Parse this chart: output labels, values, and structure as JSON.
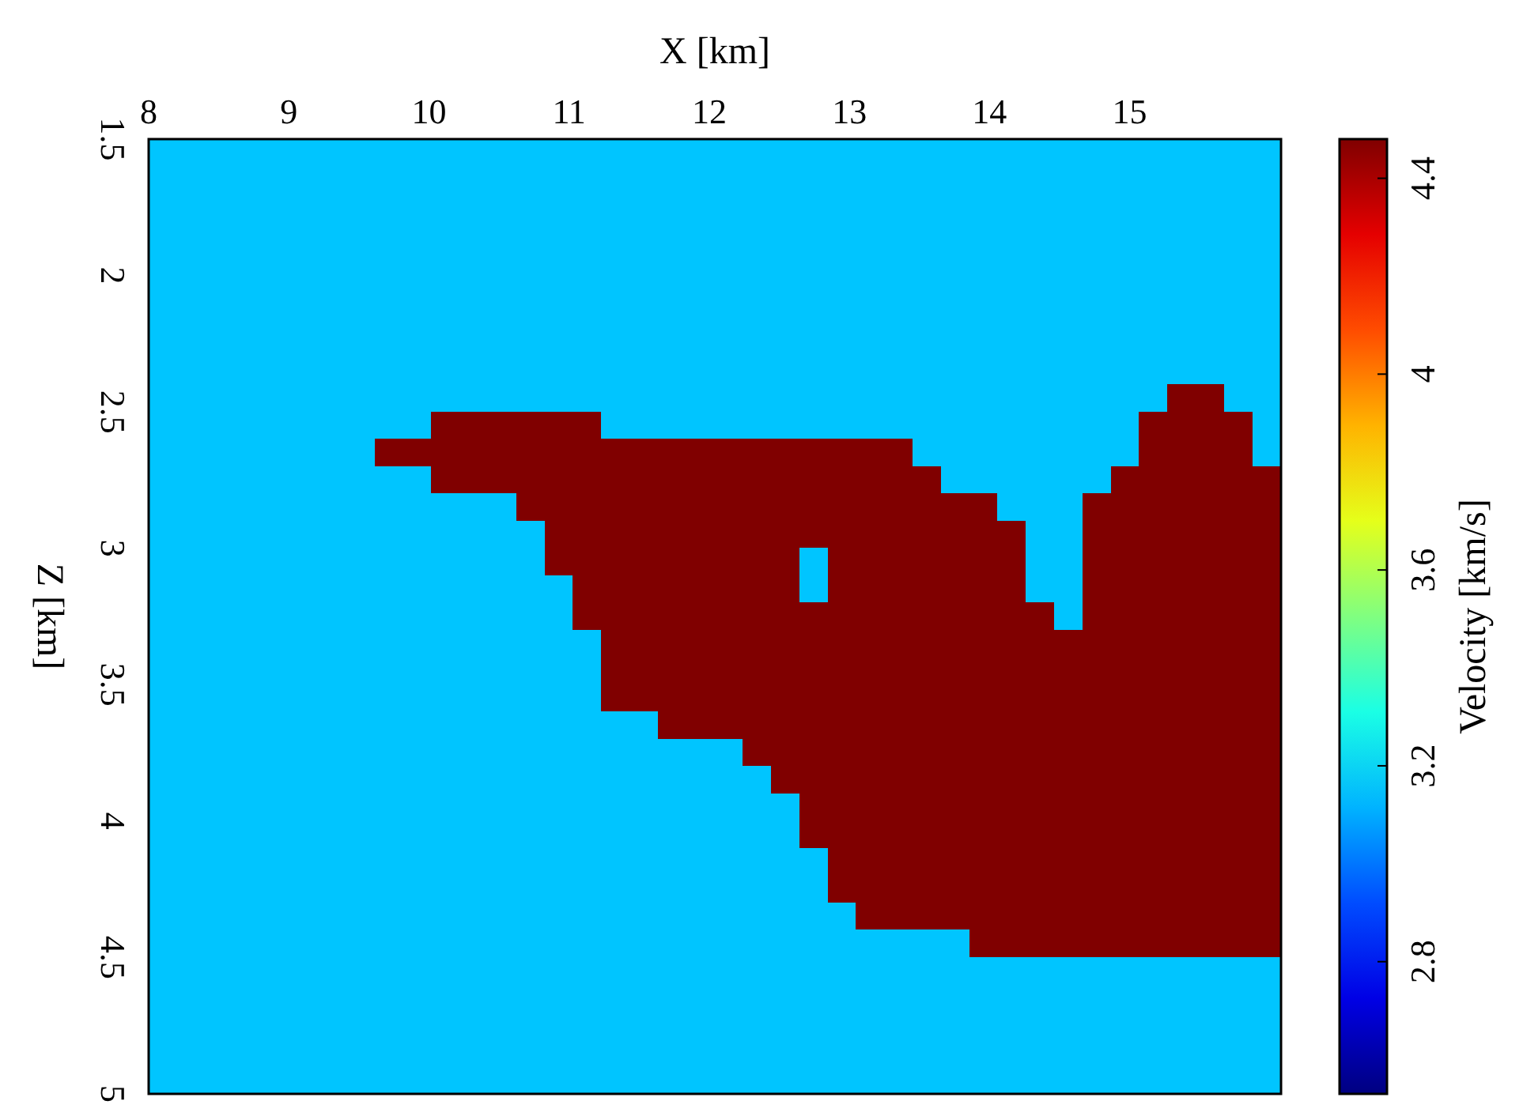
{
  "chart_data": {
    "type": "heatmap",
    "xlabel": "X [km]",
    "ylabel": "Z [km]",
    "clabel": "Velocity [km/s]",
    "xlim": [
      8,
      16.08
    ],
    "ylim": [
      5,
      1.5
    ],
    "xticks": [
      8,
      9,
      10,
      11,
      12,
      13,
      14,
      15
    ],
    "yticks": [
      1.5,
      2,
      2.5,
      3,
      3.5,
      4,
      4.5,
      5
    ],
    "clim": [
      2.53,
      4.48
    ],
    "cticks": [
      2.8,
      3.2,
      3.6,
      4,
      4.4
    ],
    "cells": [
      [
        3.15,
        3.15,
        3.15,
        3.15,
        3.15,
        3.15,
        3.15,
        3.15,
        3.15,
        3.15,
        3.15,
        3.15,
        3.15,
        3.15,
        3.15,
        3.15,
        3.15,
        3.15,
        3.15,
        3.15,
        3.15,
        3.15,
        3.15,
        3.15,
        3.15,
        3.15,
        3.15,
        3.15,
        3.15,
        3.15,
        3.15,
        3.15,
        3.15,
        3.15,
        3.15,
        3.15,
        3.15,
        3.15,
        3.15,
        3.15
      ],
      [
        3.15,
        3.15,
        3.15,
        3.15,
        3.15,
        3.15,
        3.15,
        3.15,
        3.15,
        3.15,
        3.15,
        3.15,
        3.15,
        3.15,
        3.15,
        3.15,
        3.15,
        3.15,
        3.15,
        3.15,
        3.15,
        3.15,
        3.15,
        3.15,
        3.15,
        3.15,
        3.15,
        3.15,
        3.15,
        3.15,
        3.15,
        3.15,
        3.15,
        3.15,
        3.15,
        3.15,
        3.15,
        3.15,
        3.15,
        3.15
      ],
      [
        3.15,
        3.15,
        3.15,
        3.15,
        3.15,
        3.15,
        3.15,
        3.15,
        3.15,
        3.15,
        3.15,
        3.15,
        3.15,
        3.15,
        3.15,
        3.15,
        3.15,
        3.15,
        3.15,
        3.15,
        3.15,
        3.15,
        3.15,
        3.15,
        3.15,
        3.15,
        3.15,
        3.15,
        3.15,
        3.15,
        3.15,
        3.15,
        3.15,
        3.15,
        3.15,
        3.15,
        3.15,
        3.15,
        3.15,
        3.15
      ],
      [
        3.15,
        3.15,
        3.15,
        3.15,
        3.15,
        3.15,
        3.15,
        3.15,
        3.15,
        3.15,
        3.15,
        3.15,
        3.15,
        3.15,
        3.15,
        3.15,
        3.15,
        3.15,
        3.15,
        3.15,
        3.15,
        3.15,
        3.15,
        3.15,
        3.15,
        3.15,
        3.15,
        3.15,
        3.15,
        3.15,
        3.15,
        3.15,
        3.15,
        3.15,
        3.15,
        3.15,
        3.15,
        3.15,
        3.15,
        3.15
      ],
      [
        3.15,
        3.15,
        3.15,
        3.15,
        3.15,
        3.15,
        3.15,
        3.15,
        3.15,
        3.15,
        3.15,
        3.15,
        3.15,
        3.15,
        3.15,
        3.15,
        3.15,
        3.15,
        3.15,
        3.15,
        3.15,
        3.15,
        3.15,
        3.15,
        3.15,
        3.15,
        3.15,
        3.15,
        3.15,
        3.15,
        3.15,
        3.15,
        3.15,
        3.15,
        3.15,
        3.15,
        3.15,
        3.15,
        3.15,
        3.15
      ],
      [
        3.15,
        3.15,
        3.15,
        3.15,
        3.15,
        3.15,
        3.15,
        3.15,
        3.15,
        3.15,
        3.15,
        3.15,
        3.15,
        3.15,
        3.15,
        3.15,
        3.15,
        3.15,
        3.15,
        3.15,
        3.15,
        3.15,
        3.15,
        3.15,
        3.15,
        3.15,
        3.15,
        3.15,
        3.15,
        3.15,
        3.15,
        3.15,
        3.15,
        3.15,
        3.15,
        3.15,
        3.15,
        3.15,
        3.15,
        3.15
      ],
      [
        3.15,
        3.15,
        3.15,
        3.15,
        3.15,
        3.15,
        3.15,
        3.15,
        3.15,
        3.15,
        3.15,
        3.15,
        3.15,
        3.15,
        3.15,
        3.15,
        3.15,
        3.15,
        3.15,
        3.15,
        3.15,
        3.15,
        3.15,
        3.15,
        3.15,
        3.15,
        3.15,
        3.15,
        3.15,
        3.15,
        3.15,
        3.15,
        3.15,
        3.15,
        3.15,
        3.15,
        3.15,
        3.15,
        3.15,
        3.15
      ],
      [
        3.15,
        3.15,
        3.15,
        3.15,
        3.15,
        3.15,
        3.15,
        3.15,
        3.15,
        3.15,
        3.15,
        3.15,
        3.15,
        3.15,
        3.15,
        3.15,
        3.15,
        3.15,
        3.15,
        3.15,
        3.15,
        3.15,
        3.15,
        3.15,
        3.15,
        3.15,
        3.15,
        3.15,
        3.15,
        3.15,
        3.15,
        3.15,
        3.15,
        3.15,
        3.15,
        3.15,
        3.15,
        3.15,
        3.15,
        3.15
      ],
      [
        3.15,
        3.15,
        3.15,
        3.15,
        3.15,
        3.15,
        3.15,
        3.15,
        3.15,
        3.15,
        3.15,
        3.15,
        3.15,
        3.15,
        3.15,
        3.15,
        3.15,
        3.15,
        3.15,
        3.15,
        3.15,
        3.15,
        3.15,
        3.15,
        3.15,
        3.15,
        3.15,
        3.15,
        3.15,
        3.15,
        3.15,
        3.15,
        3.15,
        3.15,
        3.15,
        3.15,
        3.15,
        3.15,
        3.15,
        3.15
      ],
      [
        3.15,
        3.15,
        3.15,
        3.15,
        3.15,
        3.15,
        3.15,
        3.15,
        3.15,
        3.15,
        3.15,
        3.15,
        3.15,
        3.15,
        3.15,
        3.15,
        3.15,
        3.15,
        3.15,
        3.15,
        3.15,
        3.15,
        3.15,
        3.15,
        3.15,
        3.15,
        3.15,
        3.15,
        3.15,
        3.15,
        3.15,
        3.15,
        3.15,
        3.15,
        3.15,
        3.15,
        4.48,
        4.48,
        3.15,
        3.15
      ],
      [
        3.15,
        3.15,
        3.15,
        3.15,
        3.15,
        3.15,
        3.15,
        3.15,
        3.15,
        3.15,
        4.48,
        4.48,
        4.48,
        4.48,
        4.48,
        4.48,
        3.15,
        3.15,
        3.15,
        3.15,
        3.15,
        3.15,
        3.15,
        3.15,
        3.15,
        3.15,
        3.15,
        3.15,
        3.15,
        3.15,
        3.15,
        3.15,
        3.15,
        3.15,
        3.15,
        4.48,
        4.48,
        4.48,
        4.48,
        3.15
      ],
      [
        3.15,
        3.15,
        3.15,
        3.15,
        3.15,
        3.15,
        3.15,
        3.15,
        4.48,
        4.48,
        4.48,
        4.48,
        4.48,
        4.48,
        4.48,
        4.48,
        4.48,
        4.48,
        4.48,
        4.48,
        4.48,
        4.48,
        4.48,
        4.48,
        4.48,
        4.48,
        4.48,
        3.15,
        3.15,
        3.15,
        3.15,
        3.15,
        3.15,
        3.15,
        3.15,
        4.48,
        4.48,
        4.48,
        4.48,
        3.15
      ],
      [
        3.15,
        3.15,
        3.15,
        3.15,
        3.15,
        3.15,
        3.15,
        3.15,
        3.15,
        3.15,
        4.48,
        4.48,
        4.48,
        4.48,
        4.48,
        4.48,
        4.48,
        4.48,
        4.48,
        4.48,
        4.48,
        4.48,
        4.48,
        4.48,
        4.48,
        4.48,
        4.48,
        4.48,
        3.15,
        3.15,
        3.15,
        3.15,
        3.15,
        3.15,
        4.48,
        4.48,
        4.48,
        4.48,
        4.48,
        4.48
      ],
      [
        3.15,
        3.15,
        3.15,
        3.15,
        3.15,
        3.15,
        3.15,
        3.15,
        3.15,
        3.15,
        3.15,
        3.15,
        3.15,
        4.48,
        4.48,
        4.48,
        4.48,
        4.48,
        4.48,
        4.48,
        4.48,
        4.48,
        4.48,
        4.48,
        4.48,
        4.48,
        4.48,
        4.48,
        4.48,
        4.48,
        3.15,
        3.15,
        3.15,
        4.48,
        4.48,
        4.48,
        4.48,
        4.48,
        4.48,
        4.48
      ],
      [
        3.15,
        3.15,
        3.15,
        3.15,
        3.15,
        3.15,
        3.15,
        3.15,
        3.15,
        3.15,
        3.15,
        3.15,
        3.15,
        3.15,
        4.48,
        4.48,
        4.48,
        4.48,
        4.48,
        4.48,
        4.48,
        4.48,
        4.48,
        4.48,
        4.48,
        4.48,
        4.48,
        4.48,
        4.48,
        4.48,
        4.48,
        3.15,
        3.15,
        4.48,
        4.48,
        4.48,
        4.48,
        4.48,
        4.48,
        4.48
      ],
      [
        3.15,
        3.15,
        3.15,
        3.15,
        3.15,
        3.15,
        3.15,
        3.15,
        3.15,
        3.15,
        3.15,
        3.15,
        3.15,
        3.15,
        4.48,
        4.48,
        4.48,
        4.48,
        4.48,
        4.48,
        4.48,
        4.48,
        4.48,
        3.15,
        4.48,
        4.48,
        4.48,
        4.48,
        4.48,
        4.48,
        4.48,
        3.15,
        3.15,
        4.48,
        4.48,
        4.48,
        4.48,
        4.48,
        4.48,
        4.48
      ],
      [
        3.15,
        3.15,
        3.15,
        3.15,
        3.15,
        3.15,
        3.15,
        3.15,
        3.15,
        3.15,
        3.15,
        3.15,
        3.15,
        3.15,
        3.15,
        4.48,
        4.48,
        4.48,
        4.48,
        4.48,
        4.48,
        4.48,
        4.48,
        3.15,
        4.48,
        4.48,
        4.48,
        4.48,
        4.48,
        4.48,
        4.48,
        3.15,
        3.15,
        4.48,
        4.48,
        4.48,
        4.48,
        4.48,
        4.48,
        4.48
      ],
      [
        3.15,
        3.15,
        3.15,
        3.15,
        3.15,
        3.15,
        3.15,
        3.15,
        3.15,
        3.15,
        3.15,
        3.15,
        3.15,
        3.15,
        3.15,
        4.48,
        4.48,
        4.48,
        4.48,
        4.48,
        4.48,
        4.48,
        4.48,
        4.48,
        4.48,
        4.48,
        4.48,
        4.48,
        4.48,
        4.48,
        4.48,
        4.48,
        3.15,
        4.48,
        4.48,
        4.48,
        4.48,
        4.48,
        4.48,
        4.48
      ],
      [
        3.15,
        3.15,
        3.15,
        3.15,
        3.15,
        3.15,
        3.15,
        3.15,
        3.15,
        3.15,
        3.15,
        3.15,
        3.15,
        3.15,
        3.15,
        3.15,
        4.48,
        4.48,
        4.48,
        4.48,
        4.48,
        4.48,
        4.48,
        4.48,
        4.48,
        4.48,
        4.48,
        4.48,
        4.48,
        4.48,
        4.48,
        4.48,
        4.48,
        4.48,
        4.48,
        4.48,
        4.48,
        4.48,
        4.48,
        4.48
      ],
      [
        3.15,
        3.15,
        3.15,
        3.15,
        3.15,
        3.15,
        3.15,
        3.15,
        3.15,
        3.15,
        3.15,
        3.15,
        3.15,
        3.15,
        3.15,
        3.15,
        4.48,
        4.48,
        4.48,
        4.48,
        4.48,
        4.48,
        4.48,
        4.48,
        4.48,
        4.48,
        4.48,
        4.48,
        4.48,
        4.48,
        4.48,
        4.48,
        4.48,
        4.48,
        4.48,
        4.48,
        4.48,
        4.48,
        4.48,
        4.48
      ],
      [
        3.15,
        3.15,
        3.15,
        3.15,
        3.15,
        3.15,
        3.15,
        3.15,
        3.15,
        3.15,
        3.15,
        3.15,
        3.15,
        3.15,
        3.15,
        3.15,
        4.48,
        4.48,
        4.48,
        4.48,
        4.48,
        4.48,
        4.48,
        4.48,
        4.48,
        4.48,
        4.48,
        4.48,
        4.48,
        4.48,
        4.48,
        4.48,
        4.48,
        4.48,
        4.48,
        4.48,
        4.48,
        4.48,
        4.48,
        4.48
      ],
      [
        3.15,
        3.15,
        3.15,
        3.15,
        3.15,
        3.15,
        3.15,
        3.15,
        3.15,
        3.15,
        3.15,
        3.15,
        3.15,
        3.15,
        3.15,
        3.15,
        3.15,
        3.15,
        4.48,
        4.48,
        4.48,
        4.48,
        4.48,
        4.48,
        4.48,
        4.48,
        4.48,
        4.48,
        4.48,
        4.48,
        4.48,
        4.48,
        4.48,
        4.48,
        4.48,
        4.48,
        4.48,
        4.48,
        4.48,
        4.48
      ],
      [
        3.15,
        3.15,
        3.15,
        3.15,
        3.15,
        3.15,
        3.15,
        3.15,
        3.15,
        3.15,
        3.15,
        3.15,
        3.15,
        3.15,
        3.15,
        3.15,
        3.15,
        3.15,
        3.15,
        3.15,
        3.15,
        4.48,
        4.48,
        4.48,
        4.48,
        4.48,
        4.48,
        4.48,
        4.48,
        4.48,
        4.48,
        4.48,
        4.48,
        4.48,
        4.48,
        4.48,
        4.48,
        4.48,
        4.48,
        4.48
      ],
      [
        3.15,
        3.15,
        3.15,
        3.15,
        3.15,
        3.15,
        3.15,
        3.15,
        3.15,
        3.15,
        3.15,
        3.15,
        3.15,
        3.15,
        3.15,
        3.15,
        3.15,
        3.15,
        3.15,
        3.15,
        3.15,
        3.15,
        4.48,
        4.48,
        4.48,
        4.48,
        4.48,
        4.48,
        4.48,
        4.48,
        4.48,
        4.48,
        4.48,
        4.48,
        4.48,
        4.48,
        4.48,
        4.48,
        4.48,
        4.48
      ],
      [
        3.15,
        3.15,
        3.15,
        3.15,
        3.15,
        3.15,
        3.15,
        3.15,
        3.15,
        3.15,
        3.15,
        3.15,
        3.15,
        3.15,
        3.15,
        3.15,
        3.15,
        3.15,
        3.15,
        3.15,
        3.15,
        3.15,
        3.15,
        4.48,
        4.48,
        4.48,
        4.48,
        4.48,
        4.48,
        4.48,
        4.48,
        4.48,
        4.48,
        4.48,
        4.48,
        4.48,
        4.48,
        4.48,
        4.48,
        4.48
      ],
      [
        3.15,
        3.15,
        3.15,
        3.15,
        3.15,
        3.15,
        3.15,
        3.15,
        3.15,
        3.15,
        3.15,
        3.15,
        3.15,
        3.15,
        3.15,
        3.15,
        3.15,
        3.15,
        3.15,
        3.15,
        3.15,
        3.15,
        3.15,
        4.48,
        4.48,
        4.48,
        4.48,
        4.48,
        4.48,
        4.48,
        4.48,
        4.48,
        4.48,
        4.48,
        4.48,
        4.48,
        4.48,
        4.48,
        4.48,
        4.48
      ],
      [
        3.15,
        3.15,
        3.15,
        3.15,
        3.15,
        3.15,
        3.15,
        3.15,
        3.15,
        3.15,
        3.15,
        3.15,
        3.15,
        3.15,
        3.15,
        3.15,
        3.15,
        3.15,
        3.15,
        3.15,
        3.15,
        3.15,
        3.15,
        3.15,
        4.48,
        4.48,
        4.48,
        4.48,
        4.48,
        4.48,
        4.48,
        4.48,
        4.48,
        4.48,
        4.48,
        4.48,
        4.48,
        4.48,
        4.48,
        4.48
      ],
      [
        3.15,
        3.15,
        3.15,
        3.15,
        3.15,
        3.15,
        3.15,
        3.15,
        3.15,
        3.15,
        3.15,
        3.15,
        3.15,
        3.15,
        3.15,
        3.15,
        3.15,
        3.15,
        3.15,
        3.15,
        3.15,
        3.15,
        3.15,
        3.15,
        4.48,
        4.48,
        4.48,
        4.48,
        4.48,
        4.48,
        4.48,
        4.48,
        4.48,
        4.48,
        4.48,
        4.48,
        4.48,
        4.48,
        4.48,
        4.48
      ],
      [
        3.15,
        3.15,
        3.15,
        3.15,
        3.15,
        3.15,
        3.15,
        3.15,
        3.15,
        3.15,
        3.15,
        3.15,
        3.15,
        3.15,
        3.15,
        3.15,
        3.15,
        3.15,
        3.15,
        3.15,
        3.15,
        3.15,
        3.15,
        3.15,
        3.15,
        4.48,
        4.48,
        4.48,
        4.48,
        4.48,
        4.48,
        4.48,
        4.48,
        4.48,
        4.48,
        4.48,
        4.48,
        4.48,
        4.48,
        4.48
      ],
      [
        3.15,
        3.15,
        3.15,
        3.15,
        3.15,
        3.15,
        3.15,
        3.15,
        3.15,
        3.15,
        3.15,
        3.15,
        3.15,
        3.15,
        3.15,
        3.15,
        3.15,
        3.15,
        3.15,
        3.15,
        3.15,
        3.15,
        3.15,
        3.15,
        3.15,
        3.15,
        3.15,
        3.15,
        3.15,
        4.48,
        4.48,
        4.48,
        4.48,
        4.48,
        4.48,
        4.48,
        4.48,
        4.48,
        4.48,
        4.48
      ],
      [
        3.15,
        3.15,
        3.15,
        3.15,
        3.15,
        3.15,
        3.15,
        3.15,
        3.15,
        3.15,
        3.15,
        3.15,
        3.15,
        3.15,
        3.15,
        3.15,
        3.15,
        3.15,
        3.15,
        3.15,
        3.15,
        3.15,
        3.15,
        3.15,
        3.15,
        3.15,
        3.15,
        3.15,
        3.15,
        3.15,
        3.15,
        3.15,
        3.15,
        3.15,
        3.15,
        3.15,
        3.15,
        3.15,
        3.15,
        3.15
      ],
      [
        3.15,
        3.15,
        3.15,
        3.15,
        3.15,
        3.15,
        3.15,
        3.15,
        3.15,
        3.15,
        3.15,
        3.15,
        3.15,
        3.15,
        3.15,
        3.15,
        3.15,
        3.15,
        3.15,
        3.15,
        3.15,
        3.15,
        3.15,
        3.15,
        3.15,
        3.15,
        3.15,
        3.15,
        3.15,
        3.15,
        3.15,
        3.15,
        3.15,
        3.15,
        3.15,
        3.15,
        3.15,
        3.15,
        3.15,
        3.15
      ],
      [
        3.15,
        3.15,
        3.15,
        3.15,
        3.15,
        3.15,
        3.15,
        3.15,
        3.15,
        3.15,
        3.15,
        3.15,
        3.15,
        3.15,
        3.15,
        3.15,
        3.15,
        3.15,
        3.15,
        3.15,
        3.15,
        3.15,
        3.15,
        3.15,
        3.15,
        3.15,
        3.15,
        3.15,
        3.15,
        3.15,
        3.15,
        3.15,
        3.15,
        3.15,
        3.15,
        3.15,
        3.15,
        3.15,
        3.15,
        3.15
      ],
      [
        3.15,
        3.15,
        3.15,
        3.15,
        3.15,
        3.15,
        3.15,
        3.15,
        3.15,
        3.15,
        3.15,
        3.15,
        3.15,
        3.15,
        3.15,
        3.15,
        3.15,
        3.15,
        3.15,
        3.15,
        3.15,
        3.15,
        3.15,
        3.15,
        3.15,
        3.15,
        3.15,
        3.15,
        3.15,
        3.15,
        3.15,
        3.15,
        3.15,
        3.15,
        3.15,
        3.15,
        3.15,
        3.15,
        3.15,
        3.15
      ],
      [
        3.15,
        3.15,
        3.15,
        3.15,
        3.15,
        3.15,
        3.15,
        3.15,
        3.15,
        3.15,
        3.15,
        3.15,
        3.15,
        3.15,
        3.15,
        3.15,
        3.15,
        3.15,
        3.15,
        3.15,
        3.15,
        3.15,
        3.15,
        3.15,
        3.15,
        3.15,
        3.15,
        3.15,
        3.15,
        3.15,
        3.15,
        3.15,
        3.15,
        3.15,
        3.15,
        3.15,
        3.15,
        3.15,
        3.15,
        3.15
      ]
    ]
  }
}
